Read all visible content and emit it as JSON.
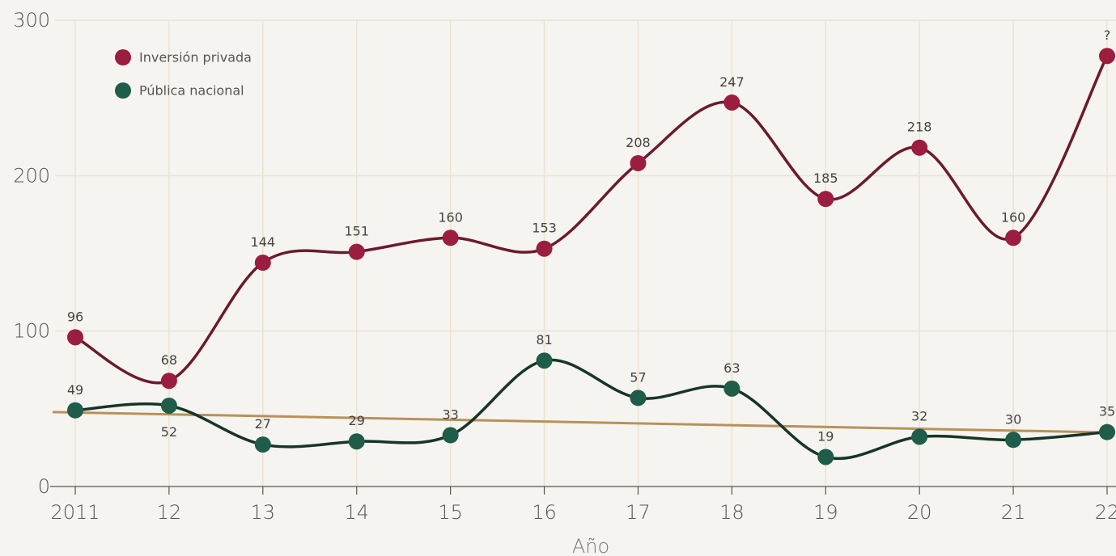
{
  "chart_data": {
    "type": "line",
    "x_label": "Año",
    "categories": [
      "2011",
      "12",
      "13",
      "14",
      "15",
      "16",
      "17",
      "18",
      "19",
      "20",
      "21",
      "22"
    ],
    "series": [
      {
        "name": "Inversión privada",
        "color": "#6b1a2e",
        "marker_color": "#9b1d3f",
        "values": [
          96,
          68,
          144,
          151,
          160,
          153,
          208,
          247,
          185,
          218,
          160,
          277
        ],
        "value_labels": [
          "96",
          "68",
          "144",
          "151",
          "160",
          "153",
          "208",
          "247",
          "185",
          "218",
          "160",
          "?"
        ]
      },
      {
        "name": "Pública nacional",
        "color": "#163528",
        "marker_color": "#1f5c4a",
        "values": [
          49,
          52,
          27,
          29,
          33,
          81,
          57,
          63,
          19,
          32,
          30,
          35
        ]
      }
    ],
    "trendline": {
      "color": "#b8915a",
      "values": [
        47.6,
        34.8
      ]
    },
    "ylim": [
      0,
      300
    ],
    "yticks": [
      0,
      100,
      200,
      300
    ],
    "grid": true,
    "legend": "upper left"
  }
}
